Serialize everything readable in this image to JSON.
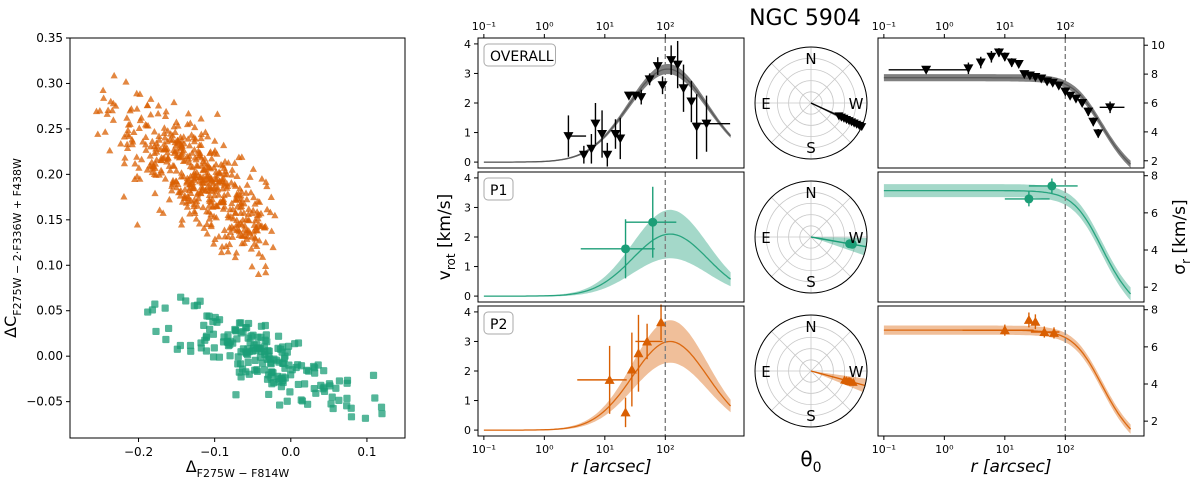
{
  "title": "NGC 5904",
  "colors": {
    "p1": "#1b9e77",
    "p2": "#d95f02",
    "overall": "#000000",
    "model_overall": "#555555",
    "dashed": "#808080"
  },
  "chart_data": [
    {
      "id": "chromosome-map",
      "type": "scatter",
      "xlabel_main": "Δ",
      "xlabel_sub": "F275W − F814W",
      "ylabel_main": "ΔC",
      "ylabel_sub": "F275W − 2·F336W + F438W",
      "xlim": [
        -0.29,
        0.15
      ],
      "ylim": [
        -0.09,
        0.35
      ],
      "xticks": [
        -0.2,
        -0.1,
        0.0,
        0.1
      ],
      "xtick_labels": [
        "−0.2",
        "−0.1",
        "0.0",
        "0.1"
      ],
      "yticks": [
        -0.05,
        0.0,
        0.05,
        0.1,
        0.15,
        0.2,
        0.25,
        0.3,
        0.35
      ],
      "ytick_labels": [
        "−0.05",
        "0.00",
        "0.05",
        "0.10",
        "0.15",
        "0.20",
        "0.25",
        "0.30",
        "0.35"
      ],
      "series": [
        {
          "name": "P2",
          "marker": "triangle",
          "color": "#d95f02",
          "n": 520,
          "center": [
            -0.115,
            0.19
          ],
          "direction": [
            0.21,
            -0.16
          ],
          "spread_along": 0.16,
          "spread_across": 0.022,
          "x_range": [
            -0.27,
            -0.02
          ],
          "y_range": [
            0.075,
            0.33
          ]
        },
        {
          "name": "P1",
          "marker": "square",
          "color": "#1b9e77",
          "n": 190,
          "center": [
            -0.04,
            0.0
          ],
          "direction": [
            0.27,
            -0.11
          ],
          "spread_along": 0.16,
          "spread_across": 0.018,
          "x_range": [
            -0.2,
            0.14
          ],
          "y_range": [
            -0.07,
            0.065
          ]
        }
      ]
    },
    {
      "id": "rotation-panels",
      "type": "line",
      "xscale": "log",
      "xlim": [
        0.08,
        2000
      ],
      "xticks": [
        0.1,
        1,
        10,
        100
      ],
      "xtick_labels": [
        "10⁻¹",
        "10⁰",
        "10¹",
        "10²"
      ],
      "xlabel": "r [arcsec]",
      "ylabel_main": "v",
      "ylabel_sub": "rot",
      "ylabel_unit": " [km/s]",
      "dashed_x": 100,
      "panels": [
        {
          "label": "OVERALL",
          "color": "#000000",
          "marker": "down-triangle",
          "ylim": [
            -0.2,
            4.2
          ],
          "yticks": [
            0,
            1,
            2,
            3,
            4
          ],
          "ytick_labels": [
            "0",
            "1",
            "2",
            "3",
            "4"
          ],
          "model": {
            "amp": 3.15,
            "rpk": 110,
            "w": 0.65,
            "band": 0.15
          },
          "points": [
            {
              "r": 2.5,
              "v": 0.88,
              "xerr": [
                0.12,
                2.4
              ],
              "yerr": 0.7
            },
            {
              "r": 4.5,
              "v": 0.25,
              "yerr": 0.3
            },
            {
              "r": 6.0,
              "v": 0.45,
              "yerr": 0.5
            },
            {
              "r": 7.0,
              "v": 1.3,
              "yerr": 0.7
            },
            {
              "r": 9.0,
              "v": 0.95,
              "yerr": 0.8
            },
            {
              "r": 11.0,
              "v": 0.25,
              "yerr": 0.4
            },
            {
              "r": 15.0,
              "v": 0.95,
              "yerr": 0.5
            },
            {
              "r": 18.0,
              "v": 0.8,
              "yerr": 0.7
            },
            {
              "r": 25.0,
              "v": 2.25,
              "yerr": 0.1
            },
            {
              "r": 32.0,
              "v": 2.25,
              "yerr": 0.1
            },
            {
              "r": 40.0,
              "v": 2.2,
              "yerr": 0.25
            },
            {
              "r": 55.0,
              "v": 2.8,
              "yerr": 0.2
            },
            {
              "r": 75.0,
              "v": 3.25,
              "yerr": 0.3
            },
            {
              "r": 90.0,
              "v": 2.6,
              "yerr": 0.3
            },
            {
              "r": 125.0,
              "v": 3.45,
              "yerr": 0.5
            },
            {
              "r": 160.0,
              "v": 3.3,
              "yerr": 0.8
            },
            {
              "r": 200.0,
              "v": 2.5,
              "yerr": 0.8
            },
            {
              "r": 270.0,
              "v": 2.05,
              "yerr": 0.7
            },
            {
              "r": 330.0,
              "v": 1.2,
              "yerr": 1.1
            },
            {
              "r": 480.0,
              "v": 1.3,
              "xerr": [
                130,
                700
              ],
              "yerr": 0.95
            }
          ]
        },
        {
          "label": "P1",
          "color": "#1b9e77",
          "marker": "circle",
          "ylim": [
            -0.2,
            4.2
          ],
          "yticks": [
            0,
            1,
            2,
            3,
            4
          ],
          "ytick_labels": [
            "0",
            "1",
            "2",
            "3",
            "4"
          ],
          "model": {
            "amp": 2.1,
            "rpk": 120,
            "w": 0.62,
            "band": 0.8
          },
          "points": [
            {
              "r": 22.0,
              "v": 1.6,
              "xerr": [
                18,
                45
              ],
              "yerr": 1.0
            },
            {
              "r": 62.0,
              "v": 2.5,
              "xerr": [
                40,
                90
              ],
              "yerr": 1.2
            }
          ]
        },
        {
          "label": "P2",
          "color": "#d95f02",
          "marker": "triangle",
          "ylim": [
            -0.2,
            4.2
          ],
          "yticks": [
            0,
            1,
            2,
            3,
            4
          ],
          "ytick_labels": [
            "0",
            "1",
            "2",
            "3",
            "4"
          ],
          "model": {
            "amp": 3.0,
            "rpk": 120,
            "w": 0.62,
            "band": 0.7
          },
          "points": [
            {
              "r": 12.0,
              "v": 1.7,
              "xerr": [
                8.5,
                11
              ],
              "yerr": 1.15
            },
            {
              "r": 22.0,
              "v": 0.6,
              "yerr": 0.5
            },
            {
              "r": 28.0,
              "v": 2.05,
              "yerr": 1.25
            },
            {
              "r": 36.0,
              "v": 2.6,
              "yerr": 1.3
            },
            {
              "r": 50.0,
              "v": 3.0,
              "xerr": [
                18,
                40
              ],
              "yerr": 0.6
            },
            {
              "r": 85.0,
              "v": 3.65,
              "yerr": 0.6
            }
          ]
        }
      ]
    },
    {
      "id": "position-angle",
      "type": "polar",
      "xlabel": "θ",
      "xlabel_sub": "0",
      "compass": [
        "N",
        "E",
        "S",
        "W"
      ],
      "panels": [
        {
          "label": "OVERALL",
          "color": "#000000",
          "theta_deg": -25,
          "band_deg": 3,
          "points_r": [
            0.55,
            0.6,
            0.65,
            0.7,
            0.75,
            0.8,
            0.85,
            0.9,
            0.95,
            1.0
          ]
        },
        {
          "label": "P1",
          "color": "#1b9e77",
          "theta_deg": -10,
          "band_deg": 9,
          "points_r": [
            0.7,
            0.75
          ]
        },
        {
          "label": "P2",
          "color": "#d95f02",
          "theta_deg": -15,
          "band_deg": 7,
          "points_r": [
            0.62,
            0.66,
            0.7,
            0.72,
            0.74,
            0.78
          ]
        }
      ]
    },
    {
      "id": "dispersion-panels",
      "type": "line",
      "xscale": "log",
      "xlim": [
        0.08,
        2000
      ],
      "xticks": [
        0.1,
        1,
        10,
        100
      ],
      "xtick_labels": [
        "10⁻¹",
        "10⁰",
        "10¹",
        "10²"
      ],
      "xlabel": "r [arcsec]",
      "ylabel_main": "σ",
      "ylabel_sub": "r",
      "ylabel_unit": " [km/s]",
      "dashed_x": 100,
      "panels": [
        {
          "label": "OVERALL",
          "color": "#000000",
          "marker": "down-triangle",
          "ylim": [
            1.5,
            10.5
          ],
          "yticks": [
            2,
            4,
            6,
            8,
            10
          ],
          "ytick_labels": [
            "2",
            "4",
            "6",
            "8",
            "10"
          ],
          "model": {
            "s0": 7.75,
            "rc": 280,
            "p": 2.0,
            "band": 0.25
          },
          "points": [
            {
              "r": 0.5,
              "v": 8.3,
              "xerr": [
                0.38,
                2.0
              ],
              "yerr": 0.2
            },
            {
              "r": 2.5,
              "v": 8.4,
              "yerr": 0.4
            },
            {
              "r": 4.0,
              "v": 8.8,
              "yerr": 0.4
            },
            {
              "r": 6.0,
              "v": 9.2,
              "yerr": 0.4
            },
            {
              "r": 8.0,
              "v": 9.5,
              "yerr": 0.3
            },
            {
              "r": 10.0,
              "v": 9.2,
              "yerr": 0.3
            },
            {
              "r": 13.0,
              "v": 8.8,
              "yerr": 0.3
            },
            {
              "r": 17.0,
              "v": 8.7,
              "yerr": 0.2
            },
            {
              "r": 21.0,
              "v": 8.0,
              "yerr": 0.15
            },
            {
              "r": 26.0,
              "v": 7.9,
              "yerr": 0.15
            },
            {
              "r": 32.0,
              "v": 7.8,
              "yerr": 0.15
            },
            {
              "r": 40.0,
              "v": 7.7,
              "yerr": 0.15
            },
            {
              "r": 50.0,
              "v": 7.5,
              "yerr": 0.15
            },
            {
              "r": 62.0,
              "v": 7.4,
              "yerr": 0.15
            },
            {
              "r": 78.0,
              "v": 7.2,
              "yerr": 0.2
            },
            {
              "r": 100.0,
              "v": 6.8,
              "yerr": 0.2
            },
            {
              "r": 120.0,
              "v": 6.5,
              "yerr": 0.2
            },
            {
              "r": 150.0,
              "v": 6.3,
              "yerr": 0.2
            },
            {
              "r": 190.0,
              "v": 6.0,
              "yerr": 0.2
            },
            {
              "r": 240.0,
              "v": 5.4,
              "yerr": 0.3
            },
            {
              "r": 290.0,
              "v": 4.7,
              "yerr": 0.3
            },
            {
              "r": 350.0,
              "v": 3.9,
              "yerr": 0.3
            },
            {
              "r": 550.0,
              "v": 5.7,
              "xerr": [
                180,
                400
              ],
              "yerr": 0.4
            }
          ]
        },
        {
          "label": "P1",
          "color": "#1b9e77",
          "marker": "circle",
          "ylim": [
            1.2,
            8.2
          ],
          "yticks": [
            2,
            4,
            6,
            8
          ],
          "ytick_labels": [
            "2",
            "4",
            "6",
            "8"
          ],
          "model": {
            "s0": 7.2,
            "rc": 280,
            "p": 2.0,
            "band": 0.35
          },
          "points": [
            {
              "r": 25.0,
              "v": 6.75,
              "xerr": [
                15,
                30
              ],
              "yerr": 0.4
            },
            {
              "r": 60.0,
              "v": 7.45,
              "xerr": [
                35,
                100
              ],
              "yerr": 0.4
            }
          ]
        },
        {
          "label": "P2",
          "color": "#d95f02",
          "marker": "triangle",
          "ylim": [
            1.2,
            8.2
          ],
          "yticks": [
            2,
            4,
            6,
            8
          ],
          "ytick_labels": [
            "2",
            "4",
            "6",
            "8"
          ],
          "model": {
            "s0": 6.9,
            "rc": 280,
            "p": 2.0,
            "band": 0.25
          },
          "points": [
            {
              "r": 10.0,
              "v": 6.9,
              "xerr": [
                8,
                20
              ],
              "yerr": 0.3
            },
            {
              "r": 25.0,
              "v": 7.45,
              "yerr": 0.4
            },
            {
              "r": 32.0,
              "v": 7.35,
              "yerr": 0.4
            },
            {
              "r": 45.0,
              "v": 6.8,
              "xerr": [
                18,
                35
              ],
              "yerr": 0.3
            },
            {
              "r": 65.0,
              "v": 6.75,
              "yerr": 0.3
            }
          ]
        }
      ]
    }
  ]
}
